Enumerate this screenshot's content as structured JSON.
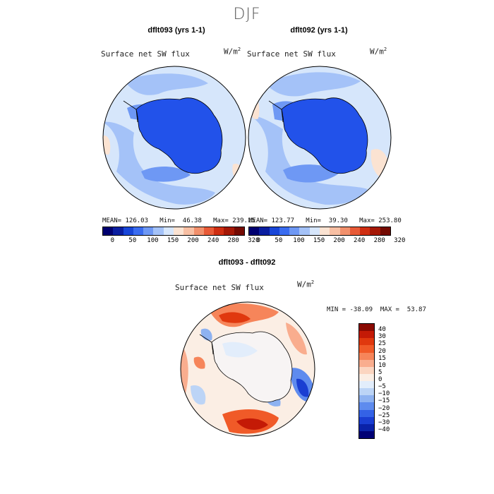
{
  "figure": {
    "season": "DJF",
    "variable": "Surface net SW flux",
    "units_base": "W/m",
    "units_exp": "2"
  },
  "panel1": {
    "title": "dflt093 (yrs 1-1)",
    "stats": "MEAN= 126.03   Min=  46.38   Max= 239.15"
  },
  "panel2": {
    "title": "dflt092 (yrs 1-1)",
    "stats": "MEAN= 123.77   Min=  39.30   Max= 253.80"
  },
  "panel3": {
    "title": "dflt093 - dflt092",
    "stats": "MIN = -38.09  MAX =  53.87"
  },
  "abs_colorbar": {
    "colors": [
      "#000070",
      "#0a1ea0",
      "#1846d8",
      "#3a6cf0",
      "#6e98f4",
      "#a4c2f8",
      "#d6e6fb",
      "#fbe3d2",
      "#f7bfa3",
      "#f1906c",
      "#e85a37",
      "#cf2e12",
      "#a51806",
      "#740a02"
    ],
    "ticks": [
      "0",
      "50",
      "100",
      "150",
      "200",
      "240",
      "280",
      "320"
    ]
  },
  "diff_colorbar": {
    "colors": [
      "#8a0a02",
      "#c41a06",
      "#e0380e",
      "#f05a28",
      "#f6855a",
      "#f9ad8e",
      "#fbd5c0",
      "#fbeee4",
      "#e2edfb",
      "#bcd4f6",
      "#8eb2f1",
      "#5e8bee",
      "#3462e6",
      "#1a3ed2",
      "#0a22a8",
      "#000075"
    ],
    "ticks": [
      "40",
      "30",
      "25",
      "20",
      "15",
      "10",
      "5",
      "0",
      "−5",
      "−10",
      "−15",
      "−20",
      "−25",
      "−30",
      "−40"
    ]
  }
}
